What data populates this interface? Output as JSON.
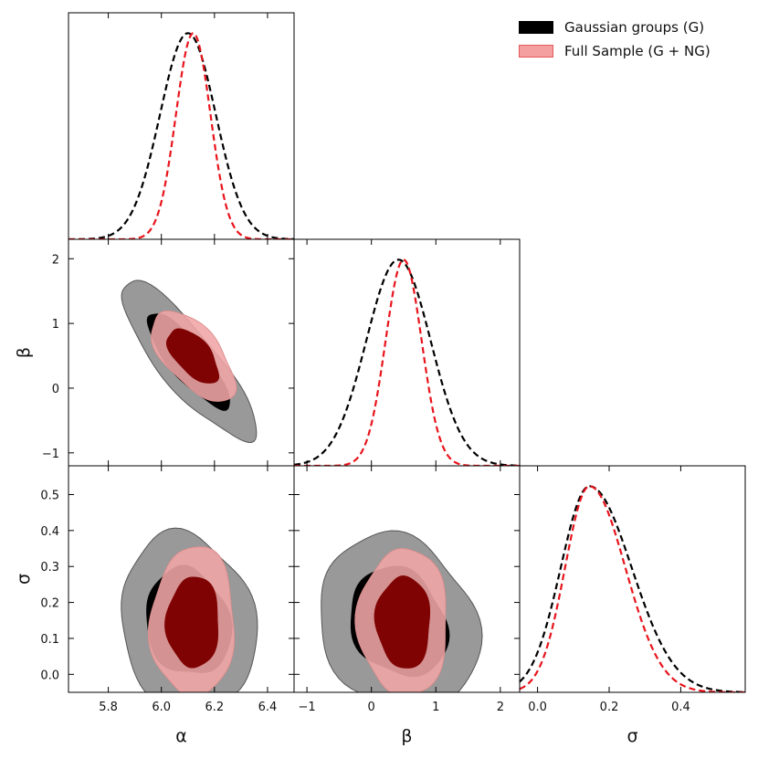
{
  "chart_data": {
    "type": "corner",
    "parameters": [
      {
        "key": "alpha",
        "label": "α",
        "range": [
          5.65,
          6.5
        ],
        "ticks": [
          5.8,
          6.0,
          6.2,
          6.4
        ],
        "tick_labels": [
          "5.8",
          "6.0",
          "6.2",
          "6.4"
        ]
      },
      {
        "key": "beta",
        "label": "β",
        "range": [
          -1.2,
          2.3
        ],
        "ticks": [
          -1,
          0,
          1,
          2
        ],
        "tick_labels": [
          "−1",
          "0",
          "1",
          "2"
        ]
      },
      {
        "key": "sigma",
        "label": "σ",
        "range": [
          -0.05,
          0.58
        ],
        "ticks": [
          0.0,
          0.1,
          0.2,
          0.3,
          0.4,
          0.5
        ],
        "tick_labels": [
          "0.0",
          "0.1",
          "0.2",
          "0.3",
          "0.4",
          "0.5"
        ]
      }
    ],
    "diag_tick_labels_sigma": [
      "0.0",
      "0.2",
      "0.4"
    ],
    "diag_ticks_sigma": [
      0.0,
      0.2,
      0.4
    ],
    "series": [
      {
        "name": "Gaussian groups (G)",
        "color": "#000000",
        "line_color": "#000000",
        "inner_color": "#000000",
        "outer_color": "#999999",
        "means": {
          "alpha": 6.1,
          "beta": 0.42,
          "sigma": 0.145
        },
        "sds": {
          "alpha": 0.105,
          "beta": 0.5,
          "sigma": 0.1
        },
        "corr": {
          "alpha_beta": -0.85,
          "alpha_sigma": -0.15,
          "beta_sigma": -0.15
        }
      },
      {
        "name": "Full Sample (G + NG)",
        "color": "#f5a0a0",
        "line_color": "#e8141c",
        "inner_color": "#7d0000",
        "outer_color": "#f0a5a5",
        "means": {
          "alpha": 6.12,
          "beta": 0.5,
          "sigma": 0.145
        },
        "sds": {
          "alpha": 0.065,
          "beta": 0.28,
          "sigma": 0.085
        },
        "corr": {
          "alpha_beta": -0.6,
          "alpha_sigma": 0.0,
          "beta_sigma": 0.0
        }
      }
    ],
    "legend": {
      "position": "top-right",
      "entries": [
        {
          "label": "Gaussian groups (G)",
          "fill": "#000000",
          "edge": "#000000"
        },
        {
          "label": "Full Sample (G + NG)",
          "fill": "#f5a0a0",
          "edge": "#e35a5a"
        }
      ]
    },
    "contour_levels": [
      "68%",
      "95%"
    ],
    "grid": false
  }
}
